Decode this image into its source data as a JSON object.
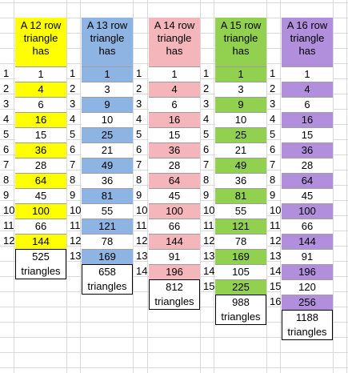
{
  "colors": {
    "yellow": "#ffff00",
    "blue": "#8db4e2",
    "pink": "#f4b6bb",
    "green": "#92d050",
    "purple": "#b18fdd",
    "white": "#ffffff",
    "gridline": "#d9d9d9"
  },
  "columns": [
    {
      "header": "A 12 row\ntriangle\nhas",
      "color": "#ffff00",
      "row_numbers": [
        1,
        2,
        3,
        4,
        5,
        6,
        7,
        8,
        9,
        10,
        11,
        12
      ],
      "values": [
        1,
        4,
        6,
        16,
        15,
        36,
        28,
        64,
        45,
        100,
        66,
        144
      ],
      "highlighted_rows": [
        1,
        3,
        5,
        7,
        9,
        11
      ],
      "total": "525\ntriangles"
    },
    {
      "header": "A 13 row\ntriangle\nhas",
      "color": "#8db4e2",
      "row_numbers": [
        1,
        2,
        3,
        4,
        5,
        6,
        7,
        8,
        9,
        10,
        11,
        12,
        13
      ],
      "values": [
        1,
        3,
        9,
        10,
        25,
        21,
        49,
        36,
        81,
        55,
        121,
        78,
        169
      ],
      "highlighted_rows": [
        0,
        2,
        4,
        6,
        8,
        10,
        12
      ],
      "total": "658\ntriangles"
    },
    {
      "header": "A 14 row\ntriangle\nhas",
      "color": "#f4b6bb",
      "row_numbers": [
        1,
        2,
        3,
        4,
        5,
        6,
        7,
        8,
        9,
        10,
        11,
        12,
        13,
        14
      ],
      "values": [
        1,
        4,
        6,
        16,
        15,
        36,
        28,
        64,
        45,
        100,
        66,
        144,
        91,
        196
      ],
      "highlighted_rows": [
        1,
        3,
        5,
        7,
        9,
        11,
        13
      ],
      "total": "812\ntriangles"
    },
    {
      "header": "A 15 row\ntriangle\nhas",
      "color": "#92d050",
      "row_numbers": [
        1,
        2,
        3,
        4,
        5,
        6,
        7,
        8,
        9,
        10,
        11,
        12,
        13,
        14,
        15
      ],
      "values": [
        1,
        3,
        9,
        10,
        25,
        21,
        49,
        36,
        81,
        55,
        121,
        78,
        169,
        105,
        225
      ],
      "highlighted_rows": [
        0,
        2,
        4,
        6,
        8,
        10,
        12,
        14
      ],
      "total": "988\ntriangles"
    },
    {
      "header": "A 16 row\ntriangle\nhas",
      "color": "#b18fdd",
      "row_numbers": [
        1,
        2,
        3,
        4,
        5,
        6,
        7,
        8,
        9,
        10,
        11,
        12,
        13,
        14,
        15,
        16
      ],
      "values": [
        1,
        4,
        6,
        16,
        15,
        36,
        28,
        64,
        45,
        100,
        66,
        144,
        91,
        196,
        120,
        256
      ],
      "highlighted_rows": [
        1,
        3,
        5,
        7,
        9,
        11,
        13,
        15
      ],
      "total": "1188\ntriangles"
    }
  ]
}
